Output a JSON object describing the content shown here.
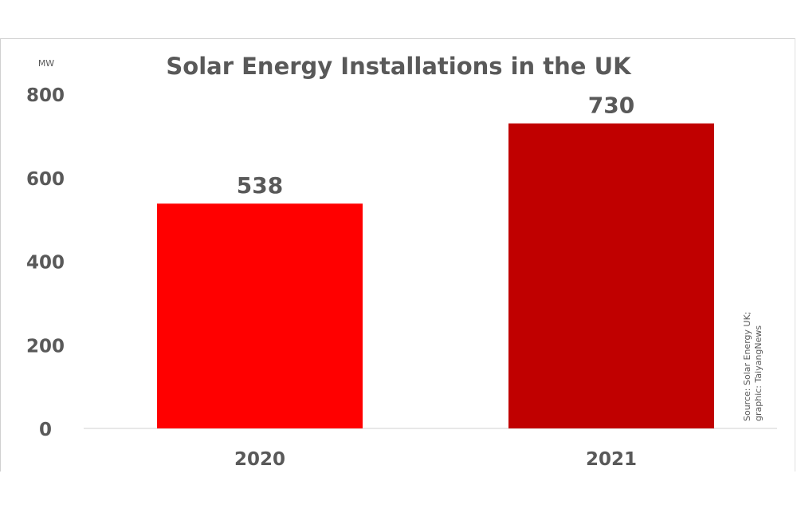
{
  "chart_data": {
    "type": "bar",
    "title": "Solar Energy Installations in the UK",
    "ylabel": "MW",
    "xlabel": "",
    "categories": [
      "2020",
      "2021"
    ],
    "values": [
      538,
      730
    ],
    "data_labels": [
      "538",
      "730"
    ],
    "ylim": [
      0,
      800
    ],
    "yticks": [
      "0",
      "200",
      "400",
      "600",
      "800"
    ],
    "grid": false,
    "colors": [
      "#ff0000",
      "#c00000"
    ],
    "source_note": [
      "Source: Solar Energy UK;",
      "graphic: TaiyangNews"
    ]
  }
}
